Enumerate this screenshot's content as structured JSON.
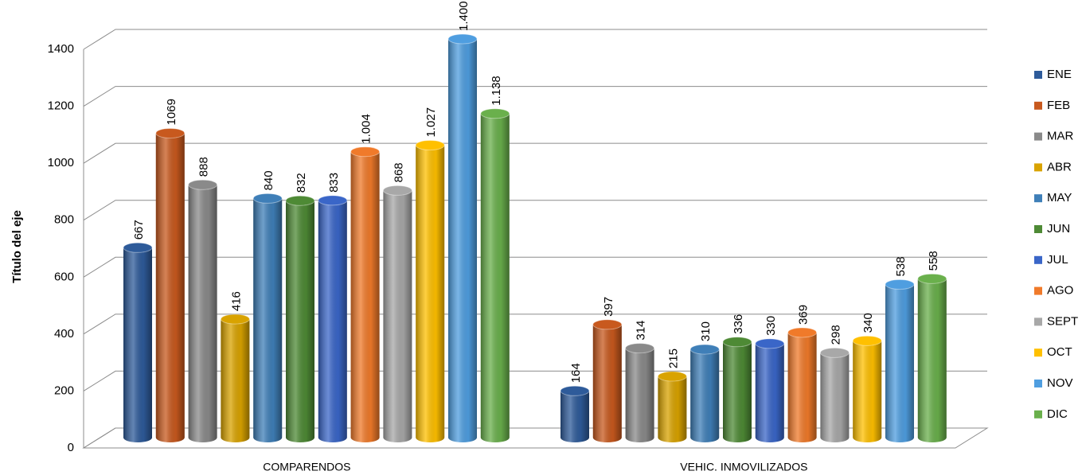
{
  "chart_data": {
    "type": "bar",
    "y_label": "Título del eje",
    "categories": [
      "COMPARENDOS",
      "VEHIC. INMOVILIZADOS"
    ],
    "ylim": [
      0,
      1400
    ],
    "yticks": [
      0,
      200,
      400,
      600,
      800,
      1000,
      1200,
      1400
    ],
    "grid": true,
    "legend": "right",
    "series": [
      {
        "name": "ENE",
        "color": "#2e5b9a",
        "values": [
          667,
          164
        ]
      },
      {
        "name": "FEB",
        "color": "#c8591e",
        "values": [
          1069,
          397
        ]
      },
      {
        "name": "MAR",
        "color": "#8a8a8a",
        "values": [
          888,
          314
        ]
      },
      {
        "name": "ABR",
        "color": "#d9a300",
        "values": [
          416,
          215
        ]
      },
      {
        "name": "MAY",
        "color": "#3f7fb8",
        "values": [
          840,
          310
        ]
      },
      {
        "name": "JUN",
        "color": "#4e8a35",
        "values": [
          832,
          336
        ]
      },
      {
        "name": "JUL",
        "color": "#3a66c8",
        "values": [
          833,
          330
        ]
      },
      {
        "name": "AGO",
        "color": "#f07a2a",
        "values": [
          1004,
          369
        ],
        "value_labels": [
          "1.004",
          "369"
        ]
      },
      {
        "name": "SEPT",
        "color": "#a8a8a8",
        "values": [
          868,
          298
        ]
      },
      {
        "name": "OCT",
        "color": "#ffc000",
        "values": [
          1027,
          340
        ],
        "value_labels": [
          "1.027",
          "340"
        ]
      },
      {
        "name": "NOV",
        "color": "#4f9ee0",
        "values": [
          1400,
          538
        ],
        "value_labels": [
          "1.400",
          "538"
        ]
      },
      {
        "name": "DIC",
        "color": "#6ab04c",
        "values": [
          1138,
          558
        ],
        "value_labels": [
          "1.138",
          "558"
        ]
      }
    ]
  }
}
